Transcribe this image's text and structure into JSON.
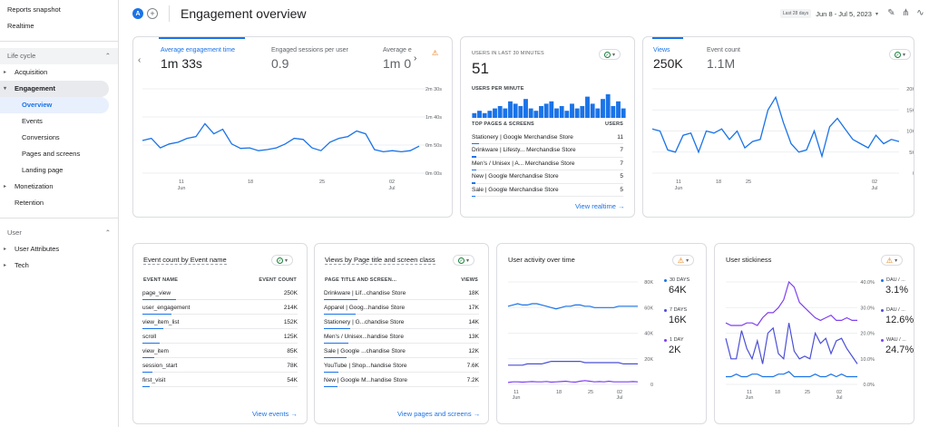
{
  "sidebar": {
    "reports_snapshot": "Reports snapshot",
    "realtime": "Realtime",
    "lifecycle": "Life cycle",
    "acquisition": "Acquisition",
    "engagement": "Engagement",
    "overview": "Overview",
    "events": "Events",
    "conversions": "Conversions",
    "pages_screens": "Pages and screens",
    "landing_page": "Landing page",
    "monetization": "Monetization",
    "retention": "Retention",
    "user": "User",
    "user_attributes": "User Attributes",
    "tech": "Tech"
  },
  "topbar": {
    "avatar": "A",
    "title": "Engagement overview",
    "date_chip": "Last 28 days",
    "date_range": "Jun 8 - Jul 5, 2023"
  },
  "card1": {
    "tabs": [
      {
        "label": "Average engagement time",
        "value": "1m 33s"
      },
      {
        "label": "Engaged sessions per user",
        "value": "0.9"
      },
      {
        "label": "Average e",
        "value": "1m 0"
      }
    ],
    "yticks": [
      "2m 30s",
      "1m 40s",
      "0m 50s",
      "0m 00s"
    ],
    "xticks": [
      {
        "d": "11",
        "m": "Jun"
      },
      {
        "d": "18",
        "m": ""
      },
      {
        "d": "25",
        "m": ""
      },
      {
        "d": "02",
        "m": "Jul"
      }
    ],
    "values": [
      58,
      62,
      45,
      52,
      55,
      62,
      65,
      88,
      70,
      78,
      52,
      44,
      45,
      40,
      42,
      45,
      52,
      62,
      60,
      45,
      40,
      55,
      62,
      65,
      75,
      70,
      42,
      38,
      40,
      38,
      40,
      48
    ]
  },
  "card2": {
    "title": "USERS IN LAST 30 MINUTES",
    "value": "51",
    "per_minute": "USERS PER MINUTE",
    "col1": "TOP PAGES & SCREENS",
    "col2": "USERS",
    "rows": [
      {
        "page": "Stationery | Google Merchandise Store",
        "users": "11"
      },
      {
        "page": "Drinkware | Lifesty... Merchandise Store",
        "users": "7"
      },
      {
        "page": "Men's / Unisex | A... Merchandise Store",
        "users": "7"
      },
      {
        "page": "New | Google Merchandise Store",
        "users": "5"
      },
      {
        "page": "Sale | Google Merchandise Store",
        "users": "5"
      }
    ],
    "link": "View realtime",
    "bars": [
      2,
      3,
      2,
      3,
      4,
      5,
      4,
      7,
      6,
      5,
      8,
      4,
      3,
      5,
      6,
      7,
      4,
      5,
      3,
      6,
      4,
      5,
      9,
      6,
      4,
      8,
      10,
      5,
      7,
      4
    ]
  },
  "card3": {
    "tab1": "Views",
    "val1": "250K",
    "tab2": "Event count",
    "val2": "1.1M",
    "yticks": [
      "20K",
      "15K",
      "10K",
      "5K",
      "0"
    ],
    "xticks": [
      {
        "d": "11",
        "m": "Jun"
      },
      {
        "d": "18",
        "m": ""
      },
      {
        "d": "25",
        "m": ""
      },
      {
        "d": "02",
        "m": "Jul"
      }
    ],
    "values": [
      10.5,
      10,
      5.5,
      5,
      9,
      9.5,
      5,
      10,
      9.5,
      10.5,
      8,
      10,
      6,
      7.5,
      8,
      15,
      18,
      12,
      7,
      5,
      5.5,
      10,
      4,
      11,
      13,
      10.5,
      8,
      7,
      6,
      9,
      7,
      8,
      7.5
    ]
  },
  "card4": {
    "title": "Event count by Event name",
    "col1": "EVENT NAME",
    "col2": "EVENT COUNT",
    "rows": [
      {
        "name": "page_view",
        "count": "250K",
        "pct": 100
      },
      {
        "name": "user_engagement",
        "count": "214K",
        "pct": 86
      },
      {
        "name": "view_item_list",
        "count": "152K",
        "pct": 61
      },
      {
        "name": "scroll",
        "count": "125K",
        "pct": 50
      },
      {
        "name": "view_item",
        "count": "85K",
        "pct": 34
      },
      {
        "name": "session_start",
        "count": "78K",
        "pct": 31
      },
      {
        "name": "first_visit",
        "count": "54K",
        "pct": 22
      }
    ],
    "link": "View events"
  },
  "card5": {
    "title": "Views by Page title and screen class",
    "col1": "PAGE TITLE AND SCREEN...",
    "col2": "VIEWS",
    "rows": [
      {
        "name": "Drinkware | Lif...chandise Store",
        "count": "18K",
        "pct": 100
      },
      {
        "name": "Apparel | Goog...handise Store",
        "count": "17K",
        "pct": 94
      },
      {
        "name": "Stationery | G...chandise Store",
        "count": "14K",
        "pct": 78
      },
      {
        "name": "Men's / Unisex...handise Store",
        "count": "13K",
        "pct": 72
      },
      {
        "name": "Sale | Google ...chandise Store",
        "count": "12K",
        "pct": 67
      },
      {
        "name": "YouTube | Shop...handise Store",
        "count": "7.6K",
        "pct": 42
      },
      {
        "name": "New | Google M...handise Store",
        "count": "7.2K",
        "pct": 40
      }
    ],
    "link": "View pages and screens"
  },
  "card6": {
    "title": "User activity over time",
    "legend": [
      {
        "label": "30 DAYS",
        "value": "64K",
        "color": "#1a73e8"
      },
      {
        "label": "7 DAYS",
        "value": "16K",
        "color": "#4b4fd6"
      },
      {
        "label": "1 DAY",
        "value": "2K",
        "color": "#7e3ff2"
      }
    ],
    "yticks": [
      "80K",
      "60K",
      "40K",
      "20K",
      "0"
    ],
    "xticks": [
      {
        "d": "11",
        "m": "Jun"
      },
      {
        "d": "18",
        "m": ""
      },
      {
        "d": "25",
        "m": ""
      },
      {
        "d": "02",
        "m": "Jul"
      }
    ]
  },
  "card7": {
    "title": "User stickiness",
    "legend": [
      {
        "label": "DAU / ...",
        "value": "3.1%",
        "color": "#1a73e8"
      },
      {
        "label": "DAU / ...",
        "value": "12.6%",
        "color": "#4b4fd6"
      },
      {
        "label": "WAU / ...",
        "value": "24.7%",
        "color": "#7e3ff2"
      }
    ],
    "yticks": [
      "40.0%",
      "30.0%",
      "20.0%",
      "10.0%",
      "0.0%"
    ],
    "xticks": [
      {
        "d": "11",
        "m": "Jun"
      },
      {
        "d": "18",
        "m": ""
      },
      {
        "d": "25",
        "m": ""
      },
      {
        "d": "02",
        "m": "Jul"
      }
    ]
  }
}
